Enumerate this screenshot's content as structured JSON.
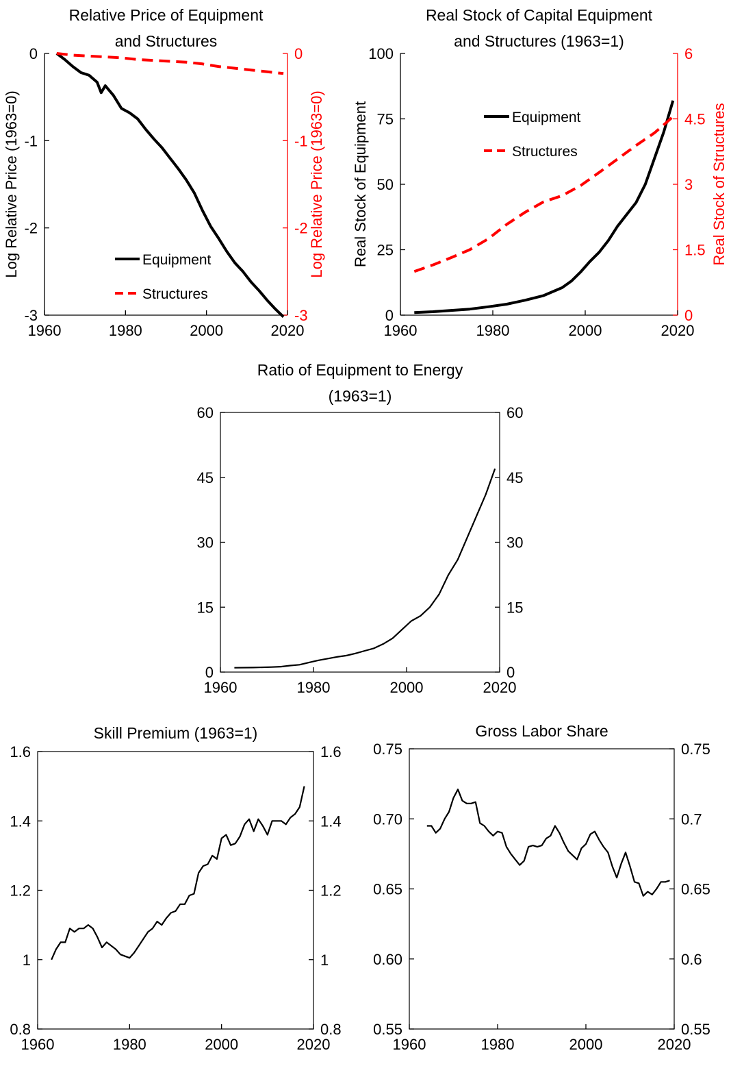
{
  "chart_data": [
    {
      "id": "relprice",
      "type": "line",
      "title": [
        "Relative Price of Equipment",
        "and Structures"
      ],
      "ylabel": "Log Relative Price (1963=0)",
      "ylabel_right": "Log Relative Price (1963=0)",
      "xlim": [
        1960,
        2020
      ],
      "xticks": [
        1960,
        1980,
        2000,
        2020
      ],
      "ylim": [
        -3,
        0
      ],
      "yticks": [
        -3,
        -2,
        -1,
        0
      ],
      "ylim_right": [
        -3,
        0
      ],
      "yticks_right": [
        -3,
        -2,
        -1,
        0
      ],
      "right_axis_color": "#ff0000",
      "legend": "center",
      "series": [
        {
          "name": "Equipment",
          "axis": "left",
          "color": "#000000",
          "dash": "solid",
          "x": [
            1963,
            1965,
            1967,
            1969,
            1971,
            1973,
            1974,
            1975,
            1977,
            1979,
            1981,
            1983,
            1985,
            1987,
            1989,
            1991,
            1993,
            1995,
            1997,
            1999,
            2001,
            2003,
            2005,
            2007,
            2008,
            2009,
            2011,
            2013,
            2015,
            2017,
            2019
          ],
          "y": [
            0,
            -0.07,
            -0.15,
            -0.22,
            -0.25,
            -0.33,
            -0.45,
            -0.37,
            -0.48,
            -0.63,
            -0.68,
            -0.75,
            -0.87,
            -0.98,
            -1.08,
            -1.2,
            -1.32,
            -1.45,
            -1.6,
            -1.8,
            -1.98,
            -2.12,
            -2.27,
            -2.4,
            -2.45,
            -2.5,
            -2.62,
            -2.72,
            -2.83,
            -2.93,
            -3.02
          ]
        },
        {
          "name": "Structures",
          "axis": "right",
          "color": "#ff0000",
          "dash": "dashed",
          "x": [
            1963,
            1967,
            1971,
            1975,
            1979,
            1983,
            1987,
            1991,
            1995,
            1999,
            2003,
            2007,
            2011,
            2015,
            2019
          ],
          "y": [
            0,
            -0.02,
            -0.03,
            -0.04,
            -0.05,
            -0.07,
            -0.08,
            -0.09,
            -0.1,
            -0.12,
            -0.15,
            -0.17,
            -0.19,
            -0.21,
            -0.23
          ]
        }
      ]
    },
    {
      "id": "stock",
      "type": "line",
      "title": [
        "Real Stock of Capital Equipment",
        "and Structures (1963=1)"
      ],
      "ylabel": "Real Stock of Equipment",
      "ylabel_right": "Real Stock of Structures",
      "xlim": [
        1960,
        2020
      ],
      "xticks": [
        1960,
        1980,
        2000,
        2020
      ],
      "ylim": [
        0,
        100
      ],
      "yticks": [
        0,
        25,
        50,
        75,
        100
      ],
      "ylim_right": [
        0,
        6
      ],
      "yticks_right": [
        "0",
        "1.5",
        "3",
        "4.5",
        "6"
      ],
      "right_axis_color": "#ff0000",
      "legend": "top-center",
      "series": [
        {
          "name": "Equipment",
          "axis": "left",
          "color": "#000000",
          "dash": "solid",
          "x": [
            1963,
            1967,
            1971,
            1975,
            1979,
            1983,
            1987,
            1991,
            1995,
            1997,
            1999,
            2001,
            2003,
            2005,
            2007,
            2009,
            2011,
            2013,
            2015,
            2017,
            2019
          ],
          "y": [
            1,
            1.3,
            1.8,
            2.3,
            3.2,
            4.2,
            5.7,
            7.5,
            10.5,
            13,
            16.5,
            20.5,
            24,
            28.5,
            34,
            38.5,
            43,
            50,
            60,
            70,
            82
          ]
        },
        {
          "name": "Structures",
          "axis": "right",
          "color": "#ff0000",
          "dash": "dashed",
          "x": [
            1963,
            1967,
            1971,
            1975,
            1979,
            1983,
            1987,
            1991,
            1995,
            1999,
            2003,
            2007,
            2011,
            2015,
            2019
          ],
          "y": [
            1,
            1.15,
            1.32,
            1.5,
            1.75,
            2.08,
            2.36,
            2.6,
            2.74,
            2.97,
            3.27,
            3.58,
            3.89,
            4.18,
            4.55
          ]
        }
      ]
    },
    {
      "id": "ratio",
      "type": "line",
      "title": [
        "Ratio of Equipment to Energy",
        "(1963=1)"
      ],
      "xlim": [
        1960,
        2020
      ],
      "xticks": [
        1960,
        1980,
        2000,
        2020
      ],
      "ylim": [
        0,
        60
      ],
      "yticks": [
        0,
        15,
        30,
        45,
        60
      ],
      "yticks_right": [
        0,
        15,
        30,
        45,
        60
      ],
      "series": [
        {
          "name": "",
          "axis": "left",
          "color": "#000000",
          "dash": "solid",
          "x": [
            1963,
            1967,
            1971,
            1973,
            1975,
            1977,
            1979,
            1981,
            1983,
            1985,
            1987,
            1989,
            1991,
            1993,
            1995,
            1997,
            1999,
            2001,
            2003,
            2005,
            2007,
            2009,
            2011,
            2013,
            2015,
            2017,
            2019
          ],
          "y": [
            1,
            1.05,
            1.15,
            1.25,
            1.5,
            1.7,
            2.2,
            2.7,
            3.1,
            3.5,
            3.8,
            4.3,
            4.9,
            5.5,
            6.5,
            7.8,
            9.8,
            11.8,
            13,
            15,
            18,
            22.5,
            26,
            31,
            36,
            41,
            47
          ]
        }
      ]
    },
    {
      "id": "skill",
      "type": "line",
      "title": [
        "Skill Premium (1963=1)"
      ],
      "xlim": [
        1960,
        2020
      ],
      "xticks": [
        1960,
        1980,
        2000,
        2020
      ],
      "ylim": [
        0.8,
        1.6
      ],
      "yticks": [
        "0.8",
        "1",
        "1.2",
        "1.4",
        "1.6"
      ],
      "yticks_right": [
        "0.8",
        "1",
        "1.2",
        "1.4",
        "1.6"
      ],
      "series": [
        {
          "name": "",
          "axis": "left",
          "color": "#000000",
          "dash": "solid",
          "x": [
            1963,
            1964,
            1965,
            1966,
            1967,
            1968,
            1969,
            1970,
            1971,
            1972,
            1973,
            1974,
            1975,
            1976,
            1977,
            1978,
            1979,
            1980,
            1981,
            1982,
            1983,
            1984,
            1985,
            1986,
            1987,
            1988,
            1989,
            1990,
            1991,
            1992,
            1993,
            1994,
            1995,
            1996,
            1997,
            1998,
            1999,
            2000,
            2001,
            2002,
            2003,
            2004,
            2005,
            2006,
            2007,
            2008,
            2009,
            2010,
            2011,
            2012,
            2013,
            2014,
            2015,
            2016,
            2017,
            2018
          ],
          "y": [
            1.0,
            1.03,
            1.05,
            1.05,
            1.09,
            1.08,
            1.09,
            1.09,
            1.1,
            1.09,
            1.065,
            1.035,
            1.05,
            1.04,
            1.03,
            1.015,
            1.01,
            1.005,
            1.02,
            1.04,
            1.06,
            1.08,
            1.09,
            1.11,
            1.1,
            1.12,
            1.135,
            1.14,
            1.16,
            1.16,
            1.185,
            1.19,
            1.25,
            1.27,
            1.275,
            1.3,
            1.29,
            1.35,
            1.36,
            1.33,
            1.335,
            1.355,
            1.39,
            1.405,
            1.37,
            1.405,
            1.385,
            1.36,
            1.4,
            1.4,
            1.4,
            1.39,
            1.41,
            1.42,
            1.44,
            1.5
          ]
        }
      ]
    },
    {
      "id": "laborshare",
      "type": "line",
      "title": [
        "Gross Labor Share"
      ],
      "xlim": [
        1960,
        2020
      ],
      "xticks": [
        1960,
        1980,
        2000,
        2020
      ],
      "ylim": [
        0.55,
        0.75
      ],
      "yticks": [
        "0.55",
        "0.60",
        "0.65",
        "0.70",
        "0.75"
      ],
      "yticks_right": [
        "0.55",
        "0.6",
        "0.65",
        "0.7",
        "0.75"
      ],
      "series": [
        {
          "name": "",
          "axis": "left",
          "color": "#000000",
          "dash": "solid",
          "x": [
            1964,
            1965,
            1966,
            1967,
            1968,
            1969,
            1970,
            1971,
            1972,
            1973,
            1974,
            1975,
            1976,
            1977,
            1978,
            1979,
            1980,
            1981,
            1982,
            1983,
            1984,
            1985,
            1986,
            1987,
            1988,
            1989,
            1990,
            1991,
            1992,
            1993,
            1994,
            1995,
            1996,
            1997,
            1998,
            1999,
            2000,
            2001,
            2002,
            2003,
            2004,
            2005,
            2006,
            2007,
            2008,
            2009,
            2010,
            2011,
            2012,
            2013,
            2014,
            2015,
            2016,
            2017,
            2018,
            2019
          ],
          "y": [
            0.695,
            0.695,
            0.69,
            0.693,
            0.7,
            0.705,
            0.715,
            0.721,
            0.713,
            0.711,
            0.711,
            0.712,
            0.697,
            0.695,
            0.691,
            0.688,
            0.691,
            0.69,
            0.68,
            0.675,
            0.671,
            0.667,
            0.67,
            0.68,
            0.681,
            0.68,
            0.681,
            0.686,
            0.688,
            0.695,
            0.69,
            0.683,
            0.677,
            0.674,
            0.671,
            0.679,
            0.682,
            0.689,
            0.691,
            0.685,
            0.68,
            0.676,
            0.666,
            0.658,
            0.668,
            0.676,
            0.666,
            0.655,
            0.654,
            0.645,
            0.648,
            0.646,
            0.65,
            0.655,
            0.655,
            0.656
          ]
        }
      ]
    }
  ]
}
